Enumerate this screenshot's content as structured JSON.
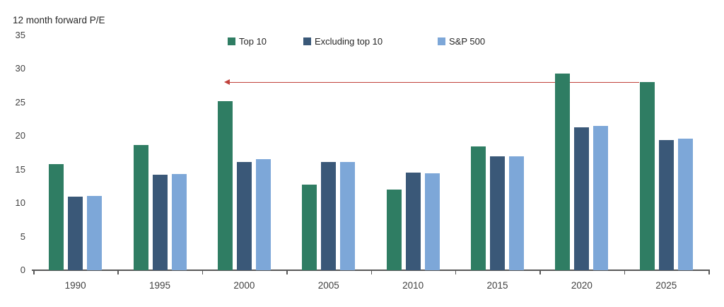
{
  "chart_data": {
    "type": "bar",
    "title": "12 month forward P/E",
    "categories": [
      "1990",
      "1995",
      "2000",
      "2005",
      "2010",
      "2015",
      "2020",
      "2025"
    ],
    "series": [
      {
        "name": "Top 10",
        "color": "#2f7d63",
        "values": [
          15.8,
          18.7,
          25.2,
          12.8,
          12.0,
          18.5,
          29.3,
          28.0
        ]
      },
      {
        "name": "Excluding top 10",
        "color": "#3a5878",
        "values": [
          11.0,
          14.2,
          16.1,
          16.1,
          14.5,
          17.0,
          21.3,
          19.4
        ]
      },
      {
        "name": "S&P 500",
        "color": "#7da7d8",
        "values": [
          11.1,
          14.3,
          16.5,
          16.1,
          14.4,
          17.0,
          21.5,
          19.6
        ]
      }
    ],
    "xlabel": "",
    "ylabel": "12 month forward P/E",
    "ylim": [
      0,
      35
    ],
    "yticks": [
      0,
      5,
      10,
      15,
      20,
      25,
      30,
      35
    ],
    "grid": false,
    "legend_position": "top",
    "annotation": {
      "type": "horizontal-arrow",
      "direction": "left",
      "value": 28.0,
      "from_category": "2025",
      "to_category": "2000",
      "color": "#c0423c",
      "meaning": "Current Top 10 forward P/E level traced back to the 2000 peak"
    }
  }
}
